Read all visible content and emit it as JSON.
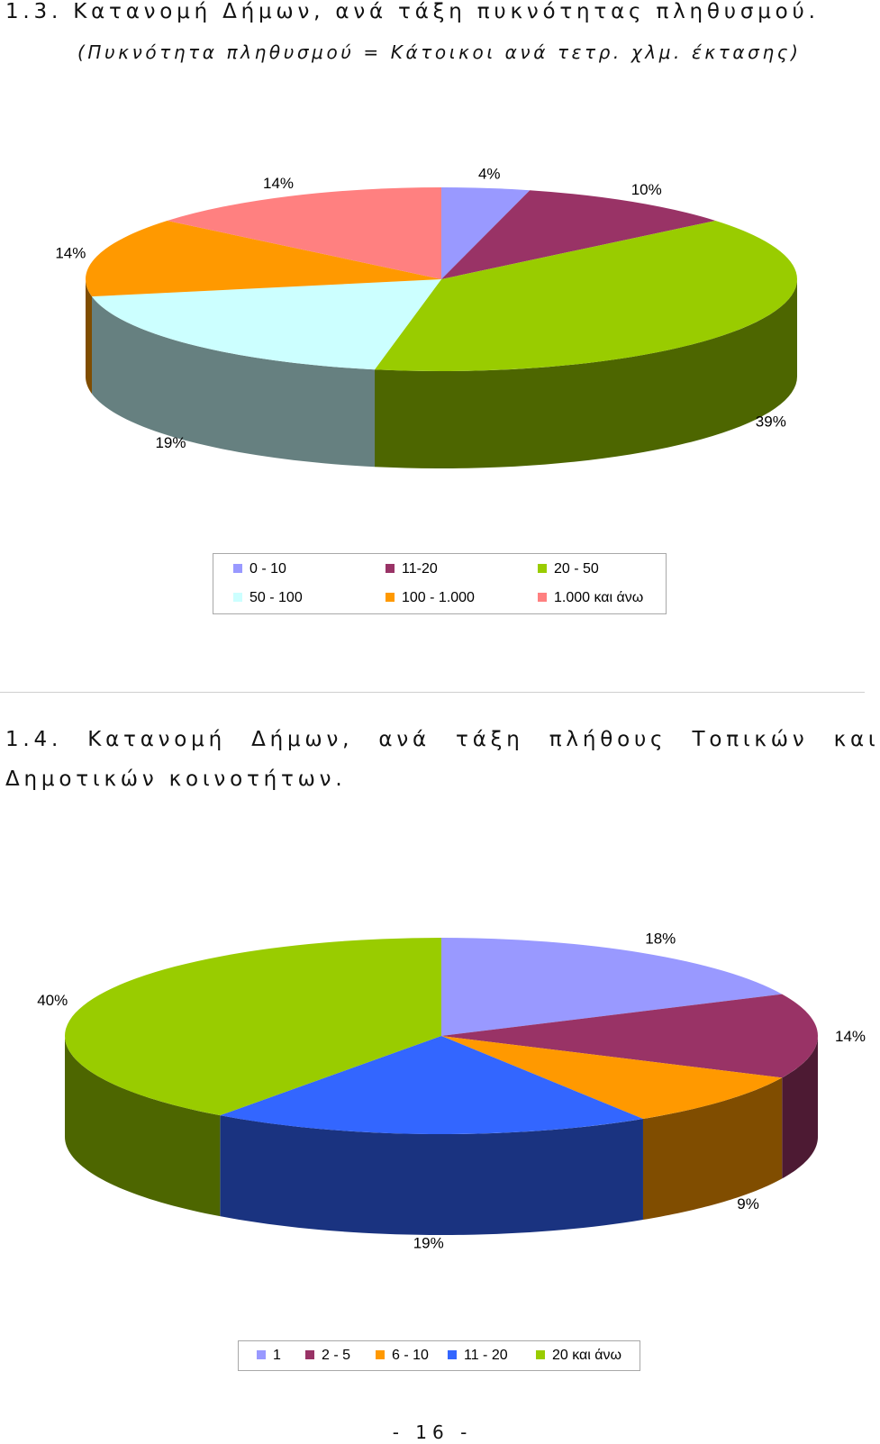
{
  "section_1_3": {
    "heading": "1.3. Κατανομή Δήμων, ανά τάξη πυκνότητας πληθυσμού.",
    "subtitle": "(Πυκνότητα πληθυσμού = Κάτοικοι ανά τετρ. χλμ. έκτασης)"
  },
  "section_1_4": {
    "heading_line1": "1.4. Κατανομή Δήμων, ανά τάξη πλήθους Τοπικών και",
    "heading_line2": "Δημοτικών κοινοτήτων."
  },
  "page_number": "- 16 -",
  "chart_data": [
    {
      "type": "pie",
      "style": "3d-exploded-off",
      "categories": [
        "0 - 10",
        "11-20",
        "20 - 50",
        "50 - 100",
        "100 - 1.000",
        "1.000 και άνω"
      ],
      "values": [
        4,
        10,
        39,
        19,
        14,
        14
      ],
      "data_labels": [
        "4%",
        "10%",
        "39%",
        "19%",
        "14%",
        "14%"
      ],
      "colors": [
        "#9999ff",
        "#993366",
        "#99cc00",
        "#ccffff",
        "#ff9900",
        "#ff8080"
      ],
      "legend": "bottom",
      "legend_columns": 3
    },
    {
      "type": "pie",
      "style": "3d",
      "categories": [
        "1",
        "2 - 5",
        "6 - 10",
        "11 - 20",
        "20 και άνω"
      ],
      "values": [
        18,
        14,
        9,
        19,
        40
      ],
      "data_labels": [
        "18%",
        "14%",
        "9%",
        "19%",
        "40%"
      ],
      "colors": [
        "#9999ff",
        "#993366",
        "#ff9900",
        "#3366ff",
        "#99cc00"
      ],
      "legend": "bottom",
      "legend_columns": 5
    }
  ]
}
